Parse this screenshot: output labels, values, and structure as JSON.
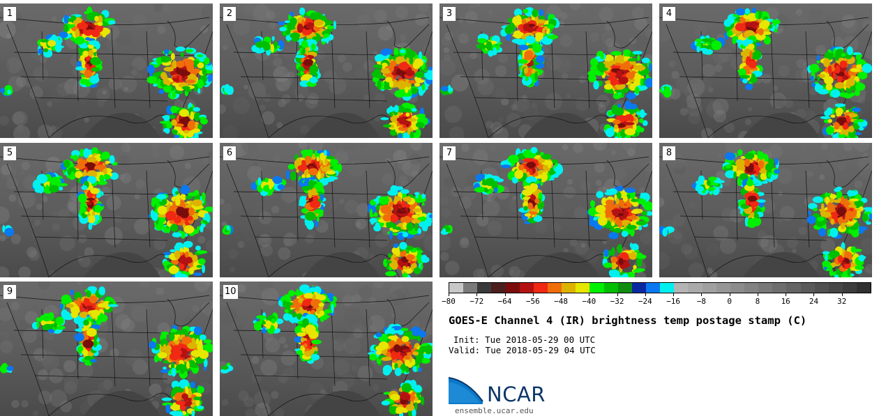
{
  "panels": [
    {
      "label": "1",
      "seed": 11
    },
    {
      "label": "2",
      "seed": 23
    },
    {
      "label": "3",
      "seed": 37
    },
    {
      "label": "4",
      "seed": 41
    },
    {
      "label": "5",
      "seed": 53
    },
    {
      "label": "6",
      "seed": 67
    },
    {
      "label": "7",
      "seed": 71
    },
    {
      "label": "8",
      "seed": 83
    },
    {
      "label": "9",
      "seed": 97
    },
    {
      "label": "10",
      "seed": 101
    }
  ],
  "colorbar": {
    "colors": [
      "#c8c8c8",
      "#7a7a7a",
      "#3a3a3a",
      "#4d1e1e",
      "#7a0c0c",
      "#b41212",
      "#f02814",
      "#f06e0a",
      "#dcb400",
      "#e6e600",
      "#00f000",
      "#00be00",
      "#108c10",
      "#0a28a0",
      "#0a78f0",
      "#00f0f0",
      "#b4b4b4",
      "#aaaaaa",
      "#a0a0a0",
      "#969696",
      "#8c8c8c",
      "#828282",
      "#787878",
      "#6e6e6e",
      "#646464",
      "#5a5a5a",
      "#505050",
      "#464646",
      "#3c3c3c",
      "#303030"
    ],
    "tick_labels": [
      "−80",
      "−72",
      "−64",
      "−56",
      "−48",
      "−40",
      "−32",
      "−24",
      "−16",
      "−8",
      "0",
      "8",
      "16",
      "24",
      "32"
    ]
  },
  "title": "GOES-E Channel 4 (IR) brightness temp postage stamp (C)",
  "init": "Init: Tue 2018-05-29 00 UTC",
  "valid": "Valid: Tue 2018-05-29 04 UTC",
  "logo_text": "NCAR",
  "url": "ensemble.ucar.edu"
}
